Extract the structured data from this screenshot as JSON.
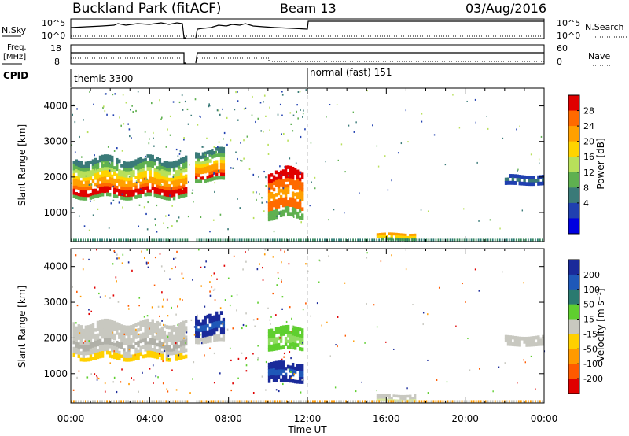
{
  "header": {
    "title": "Buckland Park (fitACF)",
    "beam": "Beam 13",
    "date": "03/Aug/2016"
  },
  "panel_labels": {
    "nsky": "N.Sky",
    "nsearch": "N.Search",
    "freq": "Freq.",
    "freq_unit": "[MHz]",
    "nave": "Nave",
    "cpid": "CPID"
  },
  "cpid_segments": [
    {
      "label": "themis 3300",
      "start_hour": 0
    },
    {
      "label": "normal (fast) 151",
      "start_hour": 12
    }
  ],
  "noise_axis": {
    "top": "10^5",
    "bottom": "10^0"
  },
  "freq_axis": {
    "top": "18",
    "bottom": "8"
  },
  "nave_axis": {
    "top": "60",
    "bottom": "0"
  },
  "colorbars": {
    "power": {
      "label": "Power [dB]",
      "ticks": [
        "28",
        "24",
        "20",
        "16",
        "12",
        "8",
        "4"
      ],
      "colors": [
        "#e00000",
        "#ff6a00",
        "#ffa000",
        "#ffd400",
        "#b8e05a",
        "#5fb050",
        "#3a7a78",
        "#2040b0",
        "#0000e0"
      ]
    },
    "velocity": {
      "label": "Velocity [m s⁻¹]",
      "ticks": [
        "200",
        "100",
        "50",
        "15",
        "-15",
        "-50",
        "-100",
        "-200"
      ],
      "colors": [
        "#1a2a9a",
        "#1f58b8",
        "#2a7a70",
        "#5fcf2f",
        "#c8c8c0",
        "#ffd000",
        "#ff9a00",
        "#ff5a00",
        "#e00000"
      ]
    }
  },
  "chart_data": [
    {
      "type": "heatmap",
      "panel": "power",
      "ylabel": "Slant Range [km]",
      "xlabel": "Time UT",
      "x_ticks": [
        "00:00",
        "04:00",
        "08:00",
        "12:00",
        "16:00",
        "20:00",
        "00:00"
      ],
      "y_ticks": [
        "1000",
        "2000",
        "3000",
        "4000"
      ],
      "xlim_hours": [
        0,
        24
      ],
      "ylim_km": [
        180,
        4500
      ],
      "regions": [
        {
          "t0": 0.1,
          "t1": 5.9,
          "r0": 1300,
          "r1": 2700,
          "value": "mixed power (green/orange, red core)"
        },
        {
          "t0": 6.3,
          "t1": 7.8,
          "r0": 1800,
          "r1": 2900,
          "value": "mixed power"
        },
        {
          "t0": 10.0,
          "t1": 11.8,
          "r0": 700,
          "r1": 2400,
          "value": "high power (red/orange)"
        },
        {
          "t0": 15.5,
          "t1": 17.5,
          "r0": 200,
          "r1": 450,
          "value": "moderate power"
        },
        {
          "t0": 22.0,
          "t1": 24.0,
          "r0": 1750,
          "r1": 2100,
          "value": "low power (blue)"
        }
      ]
    },
    {
      "type": "heatmap",
      "panel": "velocity",
      "ylabel": "Slant Range [km]",
      "xlabel": "Time UT",
      "x_ticks": [
        "00:00",
        "04:00",
        "08:00",
        "12:00",
        "16:00",
        "20:00",
        "00:00"
      ],
      "y_ticks": [
        "1000",
        "2000",
        "3000",
        "4000"
      ],
      "xlim_hours": [
        0,
        24
      ],
      "ylim_km": [
        180,
        4500
      ],
      "regions": [
        {
          "t0": 0.1,
          "t1": 5.9,
          "r0": 1300,
          "r1": 2600,
          "value": "near zero (grey)"
        },
        {
          "t0": 6.3,
          "t1": 7.8,
          "r0": 1800,
          "r1": 2800,
          "value": "positive (blue)"
        },
        {
          "t0": 10.0,
          "t1": 11.8,
          "r0": 1600,
          "r1": 2400,
          "value": "positive (green)"
        },
        {
          "t0": 10.0,
          "t1": 11.8,
          "r0": 700,
          "r1": 1400,
          "value": "strongly positive (blue)"
        },
        {
          "t0": 15.5,
          "t1": 17.5,
          "r0": 200,
          "r1": 450,
          "value": "near zero"
        },
        {
          "t0": 22.0,
          "t1": 24.0,
          "r0": 1750,
          "r1": 2100,
          "value": "near zero (grey)"
        }
      ]
    }
  ]
}
